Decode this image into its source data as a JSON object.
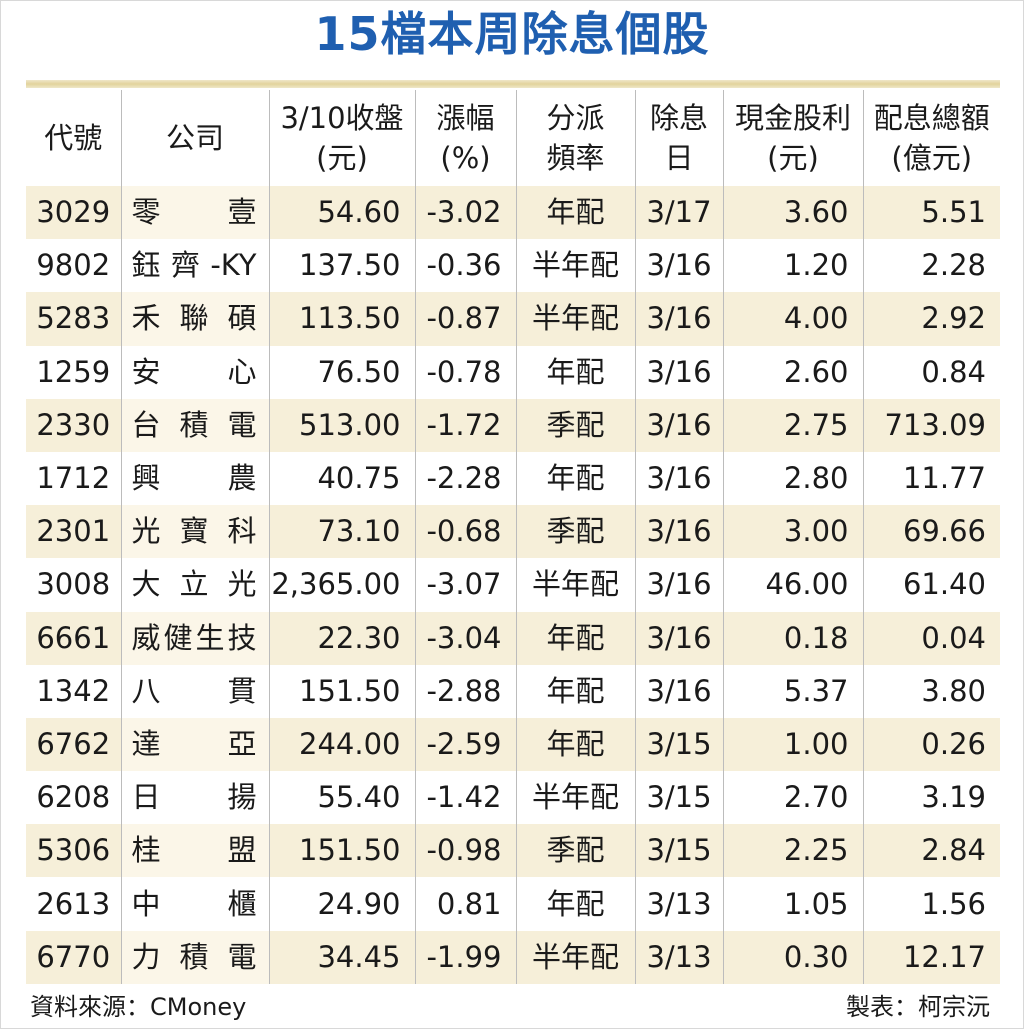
{
  "title": "15檔本周除息個股",
  "columns": [
    {
      "line1": "代號",
      "line2": ""
    },
    {
      "line1": "公司",
      "line2": ""
    },
    {
      "line1": "3/10收盤",
      "line2": "(元)"
    },
    {
      "line1": "漲幅",
      "line2": "(%)"
    },
    {
      "line1": "分派",
      "line2": "頻率"
    },
    {
      "line1": "除息",
      "line2": "日"
    },
    {
      "line1": "現金股利",
      "line2": "(元)"
    },
    {
      "line1": "配息總額",
      "line2": "(億元)"
    }
  ],
  "rows": [
    {
      "code": "3029",
      "company": "零壹",
      "close": "54.60",
      "change": "-3.02",
      "freq": "年配",
      "date": "3/17",
      "dividend": "3.60",
      "total": "5.51"
    },
    {
      "code": "9802",
      "company": "鈺齊-KY",
      "close": "137.50",
      "change": "-0.36",
      "freq": "半年配",
      "date": "3/16",
      "dividend": "1.20",
      "total": "2.28"
    },
    {
      "code": "5283",
      "company": "禾聯碩",
      "close": "113.50",
      "change": "-0.87",
      "freq": "半年配",
      "date": "3/16",
      "dividend": "4.00",
      "total": "2.92"
    },
    {
      "code": "1259",
      "company": "安心",
      "close": "76.50",
      "change": "-0.78",
      "freq": "年配",
      "date": "3/16",
      "dividend": "2.60",
      "total": "0.84"
    },
    {
      "code": "2330",
      "company": "台積電",
      "close": "513.00",
      "change": "-1.72",
      "freq": "季配",
      "date": "3/16",
      "dividend": "2.75",
      "total": "713.09"
    },
    {
      "code": "1712",
      "company": "興農",
      "close": "40.75",
      "change": "-2.28",
      "freq": "年配",
      "date": "3/16",
      "dividend": "2.80",
      "total": "11.77"
    },
    {
      "code": "2301",
      "company": "光寶科",
      "close": "73.10",
      "change": "-0.68",
      "freq": "季配",
      "date": "3/16",
      "dividend": "3.00",
      "total": "69.66"
    },
    {
      "code": "3008",
      "company": "大立光",
      "close": "2,365.00",
      "change": "-3.07",
      "freq": "半年配",
      "date": "3/16",
      "dividend": "46.00",
      "total": "61.40"
    },
    {
      "code": "6661",
      "company": "威健生技",
      "close": "22.30",
      "change": "-3.04",
      "freq": "年配",
      "date": "3/16",
      "dividend": "0.18",
      "total": "0.04"
    },
    {
      "code": "1342",
      "company": "八貫",
      "close": "151.50",
      "change": "-2.88",
      "freq": "年配",
      "date": "3/16",
      "dividend": "5.37",
      "total": "3.80"
    },
    {
      "code": "6762",
      "company": "達亞",
      "close": "244.00",
      "change": "-2.59",
      "freq": "年配",
      "date": "3/15",
      "dividend": "1.00",
      "total": "0.26"
    },
    {
      "code": "6208",
      "company": "日揚",
      "close": "55.40",
      "change": "-1.42",
      "freq": "半年配",
      "date": "3/15",
      "dividend": "2.70",
      "total": "3.19"
    },
    {
      "code": "5306",
      "company": "桂盟",
      "close": "151.50",
      "change": "-0.98",
      "freq": "季配",
      "date": "3/15",
      "dividend": "2.25",
      "total": "2.84"
    },
    {
      "code": "2613",
      "company": "中櫃",
      "close": "24.90",
      "change": "0.81",
      "freq": "年配",
      "date": "3/13",
      "dividend": "1.05",
      "total": "1.56"
    },
    {
      "code": "6770",
      "company": "力積電",
      "close": "34.45",
      "change": "-1.99",
      "freq": "半年配",
      "date": "3/13",
      "dividend": "0.30",
      "total": "12.17"
    }
  ],
  "footer": {
    "source": "資料來源：CMoney",
    "author": "製表：柯宗沅"
  },
  "colors": {
    "title": "#1f5fb0",
    "band": "#f6efd9",
    "rule": "#e2d39c"
  }
}
